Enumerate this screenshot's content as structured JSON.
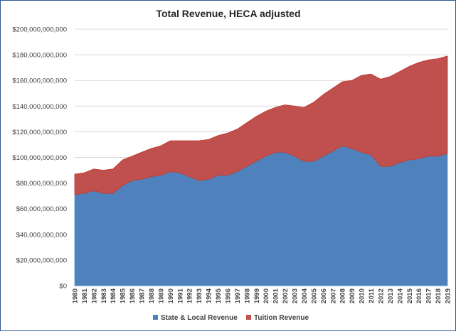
{
  "chart_data": {
    "type": "area",
    "stacked": true,
    "title": "Total Revenue, HECA adjusted",
    "xlabel": "",
    "ylabel": "",
    "ylim": [
      0,
      200000000000
    ],
    "y_ticks": [
      0,
      20000000000,
      40000000000,
      60000000000,
      80000000000,
      100000000000,
      120000000000,
      140000000000,
      160000000000,
      180000000000,
      200000000000
    ],
    "y_tick_labels": [
      "$0",
      "$20,000,000,000",
      "$40,000,000,000",
      "$60,000,000,000",
      "$80,000,000,000",
      "$100,000,000,000",
      "$120,000,000,000",
      "$140,000,000,000",
      "$160,000,000,000",
      "$180,000,000,000",
      "$200,000,000,000"
    ],
    "grid": true,
    "legend_position": "bottom",
    "categories": [
      "1980",
      "1981",
      "1982",
      "1983",
      "1984",
      "1985",
      "1986",
      "1987",
      "1988",
      "1989",
      "1990",
      "1991",
      "1992",
      "1993",
      "1994",
      "1995",
      "1996",
      "1997",
      "1998",
      "1999",
      "2000",
      "2001",
      "2002",
      "2003",
      "2004",
      "2005",
      "2006",
      "2007",
      "2008",
      "2009",
      "2010",
      "2011",
      "2012",
      "2013",
      "2014",
      "2015",
      "2016",
      "2017",
      "2018",
      "2019"
    ],
    "series": [
      {
        "name": "State & Local Revenue",
        "color": "#4f81bd",
        "values": [
          71000000000.0,
          72000000000.0,
          74000000000.0,
          72000000000.0,
          72000000000.0,
          78000000000.0,
          82000000000.0,
          83000000000.0,
          85000000000.0,
          86000000000.0,
          89000000000.0,
          88000000000.0,
          85000000000.0,
          82000000000.0,
          83000000000.0,
          86000000000.0,
          86000000000.0,
          89000000000.0,
          93000000000.0,
          97000000000.0,
          101000000000.0,
          104000000000.0,
          104000000000.0,
          101000000000.0,
          97000000000.0,
          97000000000.0,
          101000000000.0,
          105000000000.0,
          109000000000.0,
          107000000000.0,
          104000000000.0,
          102000000000.0,
          93000000000.0,
          93000000000.0,
          96000000000.0,
          98000000000.0,
          99000000000.0,
          101000000000.0,
          101000000000.0,
          103000000000.0
        ]
      },
      {
        "name": "Tuition Revenue",
        "color": "#c0504d",
        "values": [
          16000000000.0,
          16000000000.0,
          17000000000.0,
          18000000000.0,
          19000000000.0,
          20000000000.0,
          19000000000.0,
          21000000000.0,
          22000000000.0,
          23000000000.0,
          24000000000.0,
          25000000000.0,
          28000000000.0,
          31000000000.0,
          31000000000.0,
          31000000000.0,
          33000000000.0,
          33000000000.0,
          34000000000.0,
          35000000000.0,
          35000000000.0,
          35000000000.0,
          37000000000.0,
          39000000000.0,
          42000000000.0,
          46000000000.0,
          48000000000.0,
          49000000000.0,
          50000000000.0,
          53000000000.0,
          60000000000.0,
          63000000000.0,
          68000000000.0,
          70000000000.0,
          71000000000.0,
          73000000000.0,
          75000000000.0,
          75000000000.0,
          76000000000.0,
          76000000000.0
        ]
      }
    ]
  }
}
